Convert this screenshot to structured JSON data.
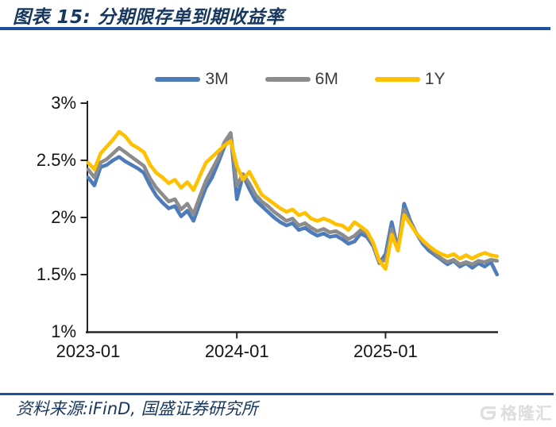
{
  "header": {
    "title": "图表 15: 分期限存单到期收益率"
  },
  "footer": {
    "source": "资料来源:iFinD, 国盛证券研究所",
    "watermark": "格隆汇"
  },
  "colors": {
    "rule_blue": "#1E4FA0",
    "title_navy": "#17375E",
    "axis": "#262626"
  },
  "chart_data": {
    "type": "line",
    "title": "分期限存单到期收益率",
    "xlabel": "",
    "ylabel": "",
    "ylim": [
      1,
      3
    ],
    "grid": false,
    "legend_position": "top",
    "y_ticks": [
      3,
      2.5,
      2,
      1.5,
      1
    ],
    "y_tick_labels": [
      "3%",
      "2.5%",
      "2%",
      "1.5%",
      "1%"
    ],
    "x_tick_labels": [
      "2023-01",
      "2024-01",
      "2025-01"
    ],
    "x_tick_positions_months": [
      0,
      12,
      24
    ],
    "x_unit": "months since 2023-01",
    "x_start": 0,
    "x_end": 33,
    "x_step": 0.5,
    "series": [
      {
        "name": "3M",
        "color": "#4E7CBB",
        "values": [
          2.35,
          2.28,
          2.44,
          2.46,
          2.5,
          2.53,
          2.49,
          2.46,
          2.43,
          2.39,
          2.28,
          2.19,
          2.13,
          2.08,
          2.1,
          2.01,
          2.06,
          1.97,
          2.12,
          2.26,
          2.35,
          2.48,
          2.62,
          2.73,
          2.16,
          2.37,
          2.25,
          2.15,
          2.1,
          2.05,
          2.0,
          1.96,
          1.93,
          1.95,
          1.89,
          1.91,
          1.87,
          1.84,
          1.86,
          1.83,
          1.84,
          1.81,
          1.77,
          1.79,
          1.86,
          1.83,
          1.75,
          1.6,
          1.68,
          1.96,
          1.72,
          2.12,
          1.97,
          1.86,
          1.77,
          1.71,
          1.67,
          1.63,
          1.59,
          1.62,
          1.57,
          1.6,
          1.56,
          1.6,
          1.57,
          1.61,
          1.5
        ]
      },
      {
        "name": "6M",
        "color": "#8C8C8C",
        "values": [
          2.42,
          2.35,
          2.48,
          2.51,
          2.56,
          2.61,
          2.57,
          2.53,
          2.49,
          2.45,
          2.34,
          2.26,
          2.2,
          2.14,
          2.16,
          2.07,
          2.12,
          2.03,
          2.18,
          2.32,
          2.42,
          2.52,
          2.66,
          2.74,
          2.28,
          2.38,
          2.3,
          2.2,
          2.14,
          2.1,
          2.05,
          2.01,
          1.97,
          1.99,
          1.93,
          1.95,
          1.91,
          1.88,
          1.9,
          1.87,
          1.88,
          1.85,
          1.81,
          1.84,
          1.89,
          1.86,
          1.77,
          1.61,
          1.63,
          1.9,
          1.72,
          2.07,
          1.95,
          1.86,
          1.79,
          1.74,
          1.69,
          1.64,
          1.61,
          1.63,
          1.59,
          1.61,
          1.59,
          1.62,
          1.61,
          1.63,
          1.62
        ]
      },
      {
        "name": "1Y",
        "color": "#FFC000",
        "values": [
          2.48,
          2.42,
          2.56,
          2.62,
          2.68,
          2.75,
          2.71,
          2.64,
          2.61,
          2.57,
          2.46,
          2.39,
          2.35,
          2.3,
          2.33,
          2.26,
          2.31,
          2.24,
          2.36,
          2.48,
          2.53,
          2.58,
          2.63,
          2.67,
          2.45,
          2.33,
          2.4,
          2.3,
          2.2,
          2.16,
          2.12,
          2.08,
          2.05,
          2.07,
          2.02,
          2.04,
          1.99,
          1.97,
          1.99,
          1.97,
          1.94,
          1.93,
          1.89,
          1.96,
          1.92,
          1.88,
          1.78,
          1.62,
          1.55,
          1.85,
          1.71,
          2.02,
          1.94,
          1.86,
          1.8,
          1.75,
          1.71,
          1.68,
          1.66,
          1.68,
          1.64,
          1.67,
          1.64,
          1.67,
          1.69,
          1.67,
          1.66
        ]
      }
    ]
  }
}
